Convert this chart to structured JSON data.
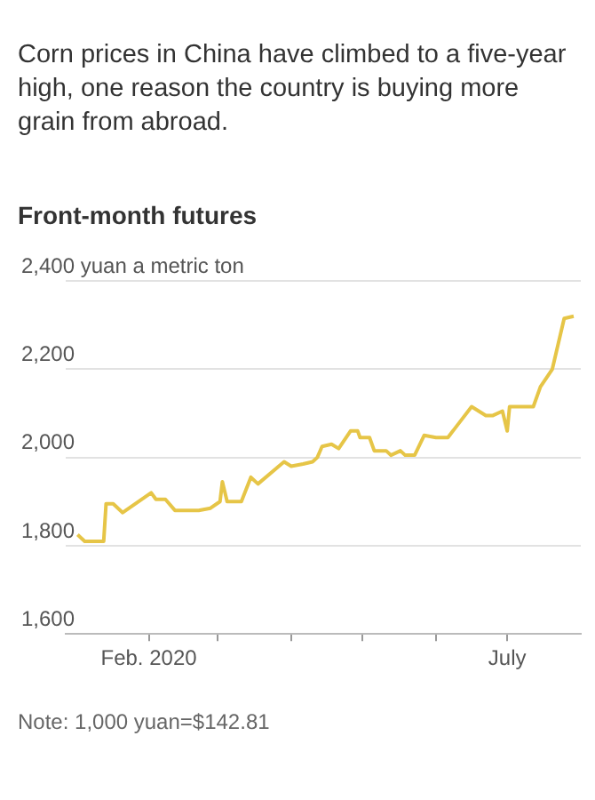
{
  "chart_data": {
    "type": "line",
    "title": "Front-month futures",
    "subtitle": "Corn prices in China have climbed to a five-year high, one reason the country is buying more grain from abroad.",
    "x": [
      "2020-01-02",
      "2020-01-05",
      "2020-01-13",
      "2020-01-14",
      "2020-01-17",
      "2020-01-21",
      "2020-02-02",
      "2020-02-04",
      "2020-02-08",
      "2020-02-12",
      "2020-02-22",
      "2020-02-27",
      "2020-03-02",
      "2020-03-03",
      "2020-03-05",
      "2020-03-11",
      "2020-03-15",
      "2020-03-18",
      "2020-03-29",
      "2020-04-01",
      "2020-04-06",
      "2020-04-10",
      "2020-04-12",
      "2020-04-14",
      "2020-04-18",
      "2020-04-21",
      "2020-04-26",
      "2020-04-29",
      "2020-04-30",
      "2020-05-04",
      "2020-05-06",
      "2020-05-11",
      "2020-05-13",
      "2020-05-17",
      "2020-05-19",
      "2020-05-23",
      "2020-05-27",
      "2020-06-01",
      "2020-06-06",
      "2020-06-11",
      "2020-06-16",
      "2020-06-22",
      "2020-06-25",
      "2020-06-29",
      "2020-07-01",
      "2020-07-02",
      "2020-07-12",
      "2020-07-15",
      "2020-07-20",
      "2020-07-25",
      "2020-07-29"
    ],
    "series": [
      {
        "color": "#e6c547",
        "values": [
          1825,
          1810,
          1810,
          1895,
          1895,
          1875,
          1920,
          1905,
          1905,
          1880,
          1880,
          1885,
          1900,
          1945,
          1900,
          1900,
          1955,
          1940,
          1990,
          1980,
          1985,
          1990,
          2000,
          2025,
          2030,
          2020,
          2060,
          2060,
          2045,
          2045,
          2015,
          2015,
          2005,
          2015,
          2005,
          2005,
          2050,
          2045,
          2045,
          2080,
          2115,
          2095,
          2095,
          2105,
          2060,
          2115,
          2115,
          2160,
          2200,
          2315,
          2320
        ]
      }
    ],
    "xlim": [
      "2019-12-28",
      "2020-08-01"
    ],
    "xticks": [
      {
        "value": "2020-02-01",
        "label": "Feb. 2020"
      },
      {
        "value": "2020-03-01",
        "label": null
      },
      {
        "value": "2020-04-01",
        "label": null
      },
      {
        "value": "2020-05-01",
        "label": null
      },
      {
        "value": "2020-06-01",
        "label": null
      },
      {
        "value": "2020-07-01",
        "label": "July"
      }
    ],
    "ylim": [
      1600,
      2400
    ],
    "yticks": [
      {
        "value": 1600,
        "label": "1,600"
      },
      {
        "value": 1800,
        "label": "1,800"
      },
      {
        "value": 2000,
        "label": "2,000"
      },
      {
        "value": 2200,
        "label": "2,200"
      },
      {
        "value": 2400,
        "label": "2,400 yuan a metric ton"
      }
    ],
    "grid": "y",
    "legend": false,
    "marker": "none",
    "line_style": "solid",
    "annotations": [
      "Note: 1,000 yuan=$142.81"
    ]
  }
}
